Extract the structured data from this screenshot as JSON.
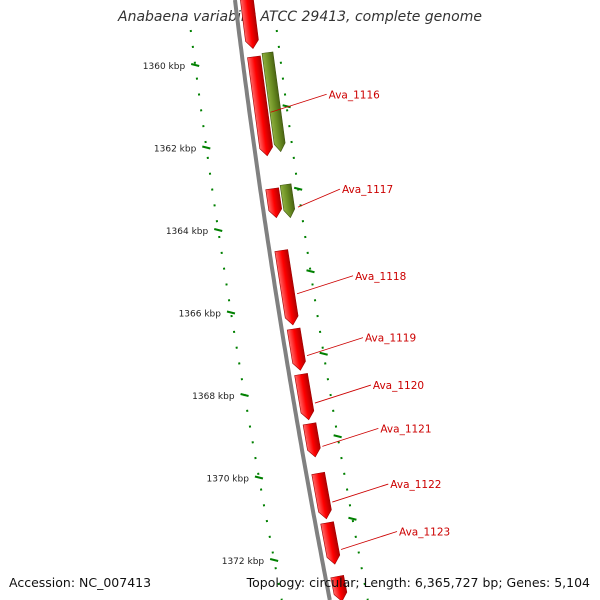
{
  "title": "Anabaena variabilis ATCC 29413, complete genome",
  "accession": "Accession: NC_007413",
  "summary": "Topology: circular; Length: 6,365,727 bp; Genes: 5,104",
  "scale": [
    {
      "kbp": 1360,
      "label": "1360 kbp"
    },
    {
      "kbp": 1362,
      "label": "1362 kbp"
    },
    {
      "kbp": 1364,
      "label": "1364 kbp"
    },
    {
      "kbp": 1366,
      "label": "1366 kbp"
    },
    {
      "kbp": 1368,
      "label": "1368 kbp"
    },
    {
      "kbp": 1370,
      "label": "1370 kbp"
    },
    {
      "kbp": 1372,
      "label": "1372 kbp"
    }
  ],
  "genes": [
    {
      "name": "",
      "start": 1358.4,
      "end": 1359.6,
      "type": "CDS"
    },
    {
      "name": "Ava_1116",
      "start": 1359.8,
      "end": 1362.2,
      "type": "CDS"
    },
    {
      "name": "",
      "start": 1359.7,
      "end": 1362.1,
      "type": "gene-product"
    },
    {
      "name": "",
      "start": 1363.0,
      "end": 1363.7,
      "type": "CDS"
    },
    {
      "name": "Ava_1117",
      "start": 1362.9,
      "end": 1363.7,
      "type": "gene-product"
    },
    {
      "name": "Ava_1118",
      "start": 1364.5,
      "end": 1366.3,
      "type": "CDS"
    },
    {
      "name": "Ava_1119",
      "start": 1366.4,
      "end": 1367.4,
      "type": "CDS"
    },
    {
      "name": "Ava_1120",
      "start": 1367.5,
      "end": 1368.6,
      "type": "CDS"
    },
    {
      "name": "Ava_1121",
      "start": 1368.7,
      "end": 1369.5,
      "type": "CDS"
    },
    {
      "name": "Ava_1122",
      "start": 1369.9,
      "end": 1371.0,
      "type": "CDS"
    },
    {
      "name": "Ava_1123",
      "start": 1371.1,
      "end": 1372.1,
      "type": "CDS"
    },
    {
      "name": "",
      "start": 1372.4,
      "end": 1373.0,
      "type": "CDS"
    }
  ],
  "colors": {
    "cds": "#ff0000",
    "gene_product": "#6b8e23",
    "backbone": "#808080",
    "dots": "#008000",
    "gene_label": "#cc0000"
  }
}
